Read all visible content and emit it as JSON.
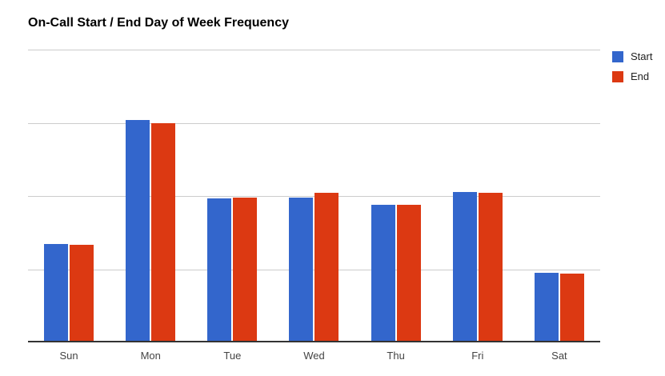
{
  "page": {
    "background": "#ffffff"
  },
  "chart_data": {
    "type": "bar",
    "title": "On-Call Start / End Day of Week Frequency",
    "xlabel": "",
    "ylabel": "",
    "categories": [
      "Sun",
      "Mon",
      "Tue",
      "Wed",
      "Thu",
      "Fri",
      "Sat"
    ],
    "series": [
      {
        "name": "Start",
        "color": "#3366CC",
        "values": [
          1.32,
          3.02,
          1.95,
          1.96,
          1.86,
          2.03,
          0.93
        ]
      },
      {
        "name": "End",
        "color": "#DC3912",
        "values": [
          1.31,
          2.97,
          1.96,
          2.02,
          1.86,
          2.02,
          0.92
        ]
      }
    ],
    "ylim": [
      0,
      4
    ],
    "gridline_step": 1,
    "grid": true,
    "y_tick_labels_visible": false,
    "legend_position": "right",
    "colors": {
      "title": "#000000",
      "gridline": "#cccccc",
      "axis_line": "#333333",
      "axis_label": "#444444",
      "legend_label": "#222222"
    }
  }
}
